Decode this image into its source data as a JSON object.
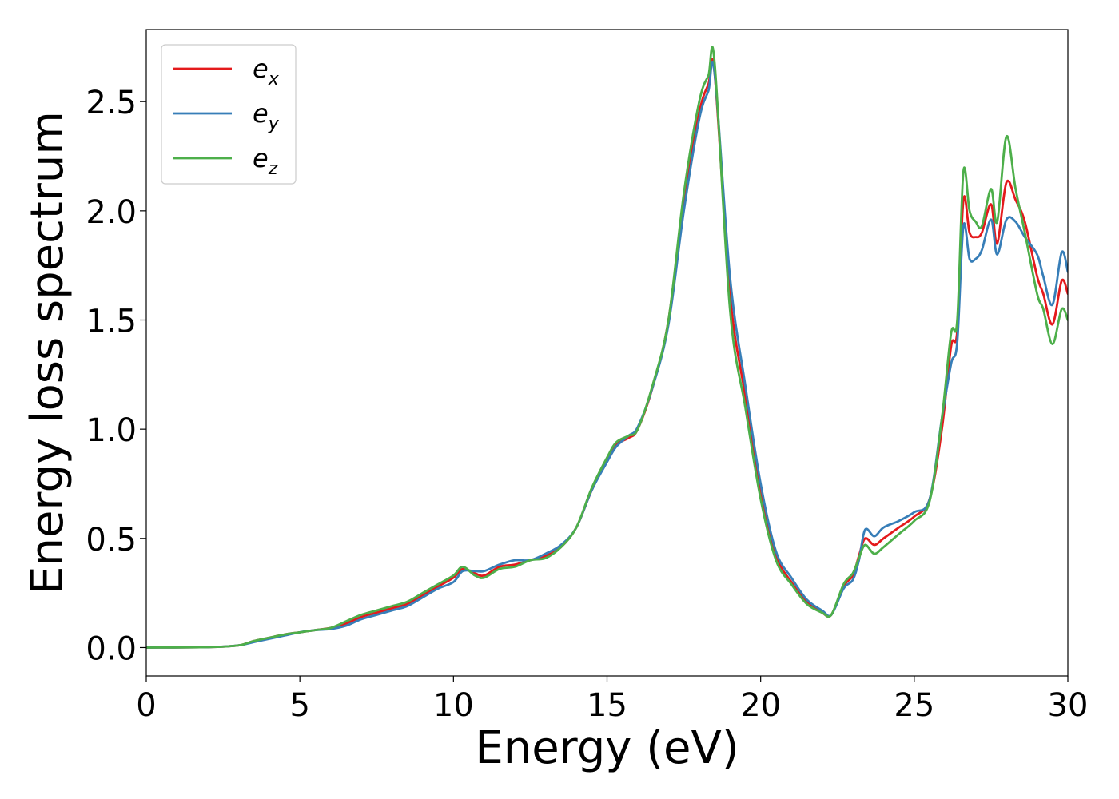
{
  "chart_data": {
    "type": "line",
    "title": "",
    "xlabel": "Energy (eV)",
    "ylabel": "Energy loss spectrum",
    "xlim": [
      0,
      30
    ],
    "ylim": [
      -0.13,
      2.83
    ],
    "xticks": [
      0,
      5,
      10,
      15,
      20,
      25,
      30
    ],
    "xtick_labels": [
      "0",
      "5",
      "10",
      "15",
      "20",
      "25",
      "30"
    ],
    "yticks": [
      0.0,
      0.5,
      1.0,
      1.5,
      2.0,
      2.5
    ],
    "ytick_labels": [
      "0.0",
      "0.5",
      "1.0",
      "1.5",
      "2.0",
      "2.5"
    ],
    "grid": false,
    "legend": "top-left",
    "series": [
      {
        "name": "e_x",
        "label_base": "e",
        "label_sub": "x",
        "color": "#e41a1c",
        "x": [
          0,
          2,
          3,
          3.5,
          4,
          4.5,
          5,
          5.5,
          6,
          6.5,
          7,
          7.5,
          8,
          8.5,
          9,
          9.5,
          10,
          10.3,
          10.7,
          11,
          11.5,
          12,
          12.5,
          13,
          13.5,
          14,
          14.5,
          15,
          15.3,
          15.7,
          16,
          16.5,
          17,
          17.5,
          18,
          18.3,
          18.5,
          19,
          19.5,
          20,
          20.5,
          21,
          21.5,
          22,
          22.3,
          22.7,
          23,
          23.2,
          23.4,
          23.7,
          24,
          24.5,
          25,
          25.5,
          25.9,
          26.2,
          26.4,
          26.6,
          26.8,
          27,
          27.2,
          27.5,
          27.7,
          28,
          28.3,
          28.6,
          29,
          29.2,
          29.5,
          29.8,
          30
        ],
        "y": [
          0.0,
          0.002,
          0.01,
          0.03,
          0.045,
          0.06,
          0.07,
          0.08,
          0.09,
          0.11,
          0.14,
          0.16,
          0.18,
          0.2,
          0.24,
          0.28,
          0.32,
          0.36,
          0.34,
          0.33,
          0.37,
          0.38,
          0.4,
          0.42,
          0.46,
          0.55,
          0.72,
          0.86,
          0.93,
          0.96,
          1.0,
          1.2,
          1.5,
          2.05,
          2.45,
          2.58,
          2.63,
          1.62,
          1.15,
          0.7,
          0.42,
          0.3,
          0.21,
          0.16,
          0.15,
          0.28,
          0.33,
          0.42,
          0.5,
          0.47,
          0.5,
          0.55,
          0.6,
          0.68,
          1.0,
          1.38,
          1.45,
          2.05,
          1.9,
          1.88,
          1.9,
          2.03,
          1.85,
          2.13,
          2.05,
          1.95,
          1.7,
          1.62,
          1.48,
          1.68,
          1.62
        ]
      },
      {
        "name": "e_y",
        "label_base": "e",
        "label_sub": "y",
        "color": "#377eb8",
        "x": [
          0,
          2,
          3,
          3.5,
          4,
          4.5,
          5,
          5.5,
          6,
          6.5,
          7,
          7.5,
          8,
          8.5,
          9,
          9.5,
          10,
          10.3,
          10.7,
          11,
          11.5,
          12,
          12.5,
          13,
          13.5,
          14,
          14.5,
          15,
          15.3,
          15.7,
          16,
          16.5,
          17,
          17.5,
          18,
          18.3,
          18.5,
          19,
          19.5,
          20,
          20.5,
          21,
          21.5,
          22,
          22.3,
          22.7,
          23,
          23.2,
          23.4,
          23.7,
          24,
          24.5,
          25,
          25.5,
          25.9,
          26.2,
          26.4,
          26.6,
          26.8,
          27,
          27.2,
          27.5,
          27.7,
          28,
          28.3,
          28.6,
          29,
          29.2,
          29.5,
          29.8,
          30
        ],
        "y": [
          0.0,
          0.002,
          0.01,
          0.025,
          0.04,
          0.055,
          0.07,
          0.08,
          0.085,
          0.1,
          0.13,
          0.15,
          0.17,
          0.19,
          0.23,
          0.27,
          0.3,
          0.35,
          0.35,
          0.35,
          0.38,
          0.4,
          0.4,
          0.43,
          0.47,
          0.55,
          0.72,
          0.85,
          0.92,
          0.97,
          1.01,
          1.2,
          1.48,
          2.0,
          2.42,
          2.55,
          2.63,
          1.7,
          1.2,
          0.75,
          0.44,
          0.32,
          0.22,
          0.17,
          0.15,
          0.27,
          0.31,
          0.4,
          0.54,
          0.51,
          0.55,
          0.58,
          0.62,
          0.68,
          1.05,
          1.3,
          1.4,
          1.93,
          1.78,
          1.78,
          1.82,
          1.96,
          1.8,
          1.96,
          1.95,
          1.88,
          1.8,
          1.7,
          1.57,
          1.81,
          1.72
        ]
      },
      {
        "name": "e_z",
        "label_base": "e",
        "label_sub": "z",
        "color": "#4daf4a",
        "x": [
          0,
          2,
          3,
          3.5,
          4,
          4.5,
          5,
          5.5,
          6,
          6.5,
          7,
          7.5,
          8,
          8.5,
          9,
          9.5,
          10,
          10.3,
          10.7,
          11,
          11.5,
          12,
          12.5,
          13,
          13.5,
          14,
          14.5,
          15,
          15.3,
          15.7,
          16,
          16.5,
          17,
          17.5,
          18,
          18.3,
          18.5,
          19,
          19.5,
          20,
          20.5,
          21,
          21.5,
          22,
          22.3,
          22.7,
          23,
          23.2,
          23.4,
          23.7,
          24,
          24.5,
          25,
          25.5,
          25.9,
          26.2,
          26.4,
          26.6,
          26.8,
          27,
          27.2,
          27.5,
          27.7,
          28,
          28.3,
          28.6,
          29,
          29.2,
          29.5,
          29.8,
          30
        ],
        "y": [
          0.0,
          0.002,
          0.01,
          0.03,
          0.045,
          0.06,
          0.07,
          0.08,
          0.09,
          0.12,
          0.15,
          0.17,
          0.19,
          0.21,
          0.25,
          0.29,
          0.33,
          0.37,
          0.33,
          0.32,
          0.36,
          0.37,
          0.4,
          0.41,
          0.46,
          0.55,
          0.73,
          0.87,
          0.94,
          0.97,
          1.0,
          1.21,
          1.5,
          2.08,
          2.5,
          2.62,
          2.68,
          1.55,
          1.1,
          0.68,
          0.4,
          0.29,
          0.2,
          0.16,
          0.15,
          0.29,
          0.34,
          0.41,
          0.47,
          0.43,
          0.46,
          0.52,
          0.58,
          0.67,
          1.05,
          1.44,
          1.5,
          2.18,
          2.0,
          1.95,
          1.93,
          2.1,
          1.95,
          2.34,
          2.1,
          1.9,
          1.62,
          1.55,
          1.39,
          1.55,
          1.5
        ]
      }
    ]
  }
}
